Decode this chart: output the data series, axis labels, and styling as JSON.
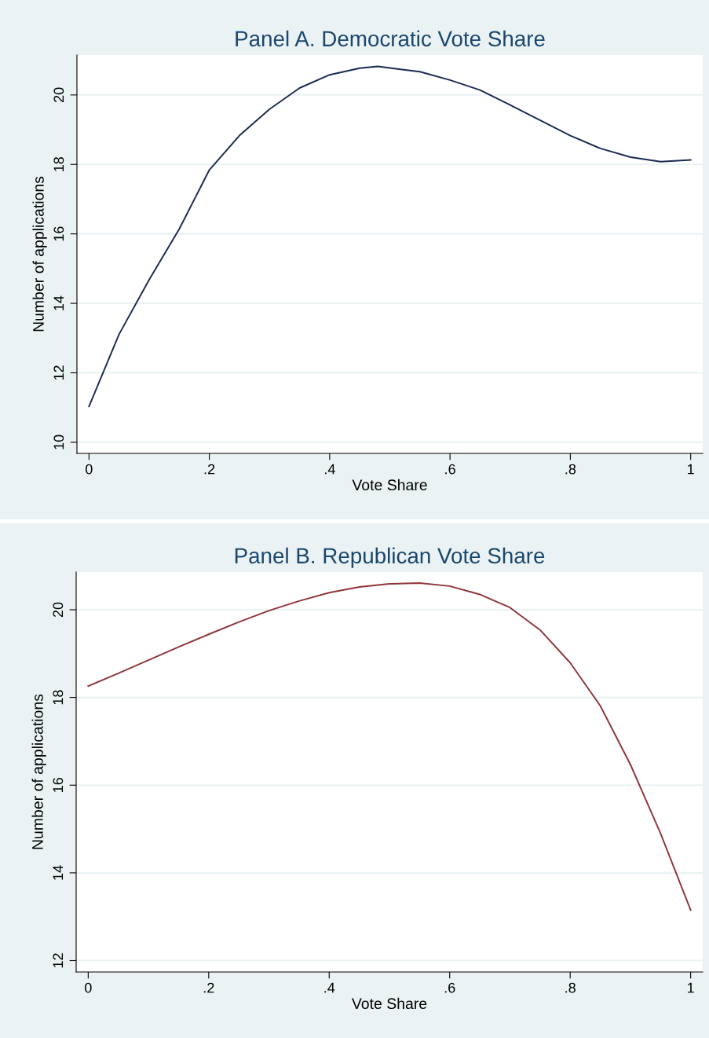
{
  "chart_data": [
    {
      "type": "line",
      "title": "Panel A. Democratic Vote Share",
      "xlabel": "Vote Share",
      "ylabel": "Number of applications",
      "x": [
        0,
        0.05,
        0.1,
        0.15,
        0.2,
        0.25,
        0.3,
        0.35,
        0.4,
        0.45,
        0.48,
        0.55,
        0.6,
        0.65,
        0.7,
        0.75,
        0.8,
        0.85,
        0.9,
        0.95,
        1.0
      ],
      "series": [
        {
          "color": "#1b2a52",
          "values": [
            11.03,
            13.11,
            14.68,
            16.14,
            17.84,
            18.83,
            19.59,
            20.2,
            20.58,
            20.77,
            20.82,
            20.67,
            20.43,
            20.14,
            19.71,
            19.27,
            18.83,
            18.46,
            18.21,
            18.08,
            18.13
          ]
        }
      ],
      "xlim": [
        -0.02,
        1.02
      ],
      "ylim": [
        9.68,
        21.15
      ],
      "xticks": [
        0,
        {
          "value": 0.2,
          "label": ".2"
        },
        {
          "value": 0.4,
          "label": ".4"
        },
        {
          "value": 0.6,
          "label": ".6"
        },
        {
          "value": 0.8,
          "label": ".8"
        },
        1
      ],
      "yticks": [
        10,
        12,
        14,
        16,
        18,
        20
      ],
      "grid": "y",
      "marker": "none",
      "line_style": "solid"
    },
    {
      "type": "line",
      "title": "Panel B. Republican Vote Share",
      "xlabel": "Vote Share",
      "ylabel": "Number of applications",
      "x": [
        0,
        0.05,
        0.1,
        0.15,
        0.2,
        0.25,
        0.3,
        0.35,
        0.4,
        0.45,
        0.5,
        0.55,
        0.6,
        0.65,
        0.7,
        0.75,
        0.8,
        0.85,
        0.9,
        0.95,
        1.0
      ],
      "series": [
        {
          "color": "#90353b",
          "values": [
            18.26,
            18.55,
            18.85,
            19.15,
            19.44,
            19.72,
            19.98,
            20.2,
            20.39,
            20.52,
            20.59,
            20.61,
            20.54,
            20.35,
            20.05,
            19.54,
            18.79,
            17.81,
            16.47,
            14.9,
            13.15
          ]
        }
      ],
      "xlim": [
        -0.02,
        1.02
      ],
      "ylim": [
        11.74,
        20.86
      ],
      "xticks": [
        0,
        {
          "value": 0.2,
          "label": ".2"
        },
        {
          "value": 0.4,
          "label": ".4"
        },
        {
          "value": 0.6,
          "label": ".6"
        },
        {
          "value": 0.8,
          "label": ".8"
        },
        1
      ],
      "yticks": [
        12,
        14,
        16,
        18,
        20
      ],
      "grid": "y",
      "marker": "none",
      "line_style": "solid"
    }
  ]
}
